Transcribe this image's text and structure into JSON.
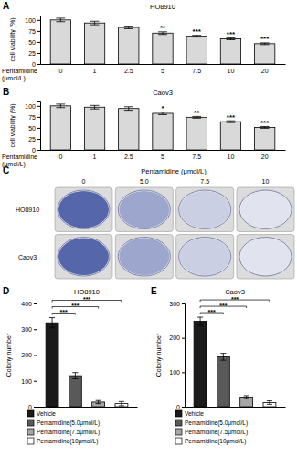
{
  "chart_data": [
    {
      "panel_label": "A",
      "type": "bar",
      "title": "HO8910",
      "y_label": "cell viability (%)",
      "x_label": [
        "Pentamidine",
        "(μmol/L)"
      ],
      "categories": [
        "0",
        "1",
        "2.5",
        "5",
        "7.5",
        "10",
        "20"
      ],
      "values": [
        100,
        93,
        83,
        70,
        63,
        57,
        46
      ],
      "errors": [
        4,
        4,
        3,
        3,
        2,
        2,
        2
      ],
      "significance": [
        null,
        null,
        null,
        "**",
        "***",
        "***",
        "***"
      ],
      "color": "#d9d9d9",
      "ylim": [
        0,
        110
      ],
      "yticks": [
        0,
        25,
        50,
        75,
        100
      ]
    },
    {
      "panel_label": "B",
      "type": "bar",
      "title": "Caov3",
      "y_label": "cell viability (%)",
      "x_label": [
        "Pentamidine",
        "(μmol/L)"
      ],
      "categories": [
        "0",
        "1",
        "2.5",
        "5",
        "7.5",
        "10",
        "20"
      ],
      "values": [
        100,
        97,
        94,
        83,
        74,
        64,
        51
      ],
      "errors": [
        4,
        4,
        4,
        3,
        2,
        2,
        2
      ],
      "significance": [
        null,
        null,
        null,
        "*",
        "**",
        "***",
        "***"
      ],
      "color": "#d9d9d9",
      "ylim": [
        0,
        110
      ],
      "yticks": [
        0,
        25,
        50,
        75,
        100
      ]
    },
    {
      "panel_label": "D",
      "type": "bar",
      "title": "HO8910",
      "y_label": "Colony number",
      "categories": [
        "Vehicle",
        "Pentamidine(5.0μmol/L)",
        "Pentamidine(7.5μmol/L)",
        "Pentamidine(10μmol/L)"
      ],
      "values": [
        325,
        120,
        18,
        12
      ],
      "errors": [
        20,
        12,
        6,
        8
      ],
      "colors": [
        "#1a1a1a",
        "#595959",
        "#a6a6a6",
        "#ffffff"
      ],
      "comparisons": [
        {
          "from": 0,
          "to": 1,
          "label": "***"
        },
        {
          "from": 0,
          "to": 2,
          "label": "***"
        },
        {
          "from": 0,
          "to": 3,
          "label": "***"
        }
      ],
      "ylim": [
        0,
        400
      ],
      "yticks": [
        0,
        100,
        200,
        300,
        400
      ],
      "tick_labels": "y",
      "legend": "bottom"
    },
    {
      "panel_label": "E",
      "type": "bar",
      "title": "Caov3",
      "y_label": "Colony number",
      "categories": [
        "Vehicle",
        "Pentamidine(5.0μmol/L)",
        "Pentamidine(7.5μmol/L)",
        "Pentamidine(10μmol/L)"
      ],
      "values": [
        248,
        145,
        28,
        12
      ],
      "errors": [
        12,
        10,
        4,
        5
      ],
      "colors": [
        "#1a1a1a",
        "#595959",
        "#a6a6a6",
        "#ffffff"
      ],
      "comparisons": [
        {
          "from": 0,
          "to": 1,
          "label": "***"
        },
        {
          "from": 0,
          "to": 2,
          "label": "***"
        },
        {
          "from": 0,
          "to": 3,
          "label": "***"
        }
      ],
      "ylim": [
        0,
        300
      ],
      "yticks": [
        0,
        100,
        200,
        300
      ],
      "tick_labels": "y",
      "legend": "bottom"
    }
  ],
  "plates": {
    "panel_label": "C",
    "title": "Pentamidine (μmol/L)",
    "doses": [
      "0",
      "5.0",
      "7.5",
      "10"
    ],
    "cell_lines": [
      "HO8910",
      "Caov3"
    ]
  }
}
